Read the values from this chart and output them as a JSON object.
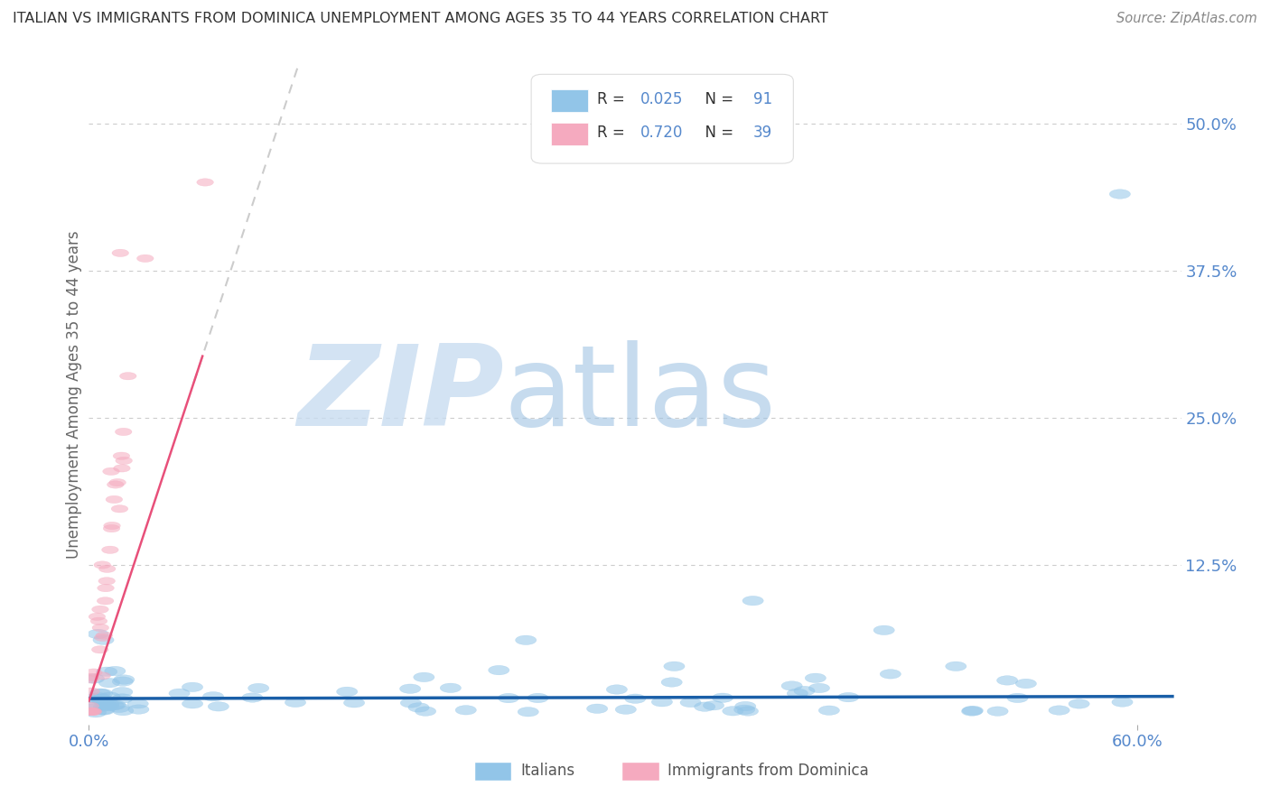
{
  "title": "ITALIAN VS IMMIGRANTS FROM DOMINICA UNEMPLOYMENT AMONG AGES 35 TO 44 YEARS CORRELATION CHART",
  "source": "Source: ZipAtlas.com",
  "ylabel": "Unemployment Among Ages 35 to 44 years",
  "xlim": [
    0.0,
    0.625
  ],
  "ylim": [
    -0.01,
    0.55
  ],
  "ytick_vals": [
    0.125,
    0.25,
    0.375,
    0.5
  ],
  "ytick_labels": [
    "12.5%",
    "25.0%",
    "37.5%",
    "50.0%"
  ],
  "xtick_vals": [
    0.0,
    0.6
  ],
  "xtick_labels": [
    "0.0%",
    "60.0%"
  ],
  "italian_color": "#92C5E8",
  "dominica_color": "#F5AABF",
  "italian_line_color": "#1A5FA8",
  "dominica_line_color": "#E8507A",
  "dominica_dash_color": "#CCCCCC",
  "italian_R": 0.025,
  "italian_N": 91,
  "dominica_R": 0.72,
  "dominica_N": 39,
  "watermark_zip": "ZIP",
  "watermark_atlas": "atlas",
  "background_color": "#FFFFFF",
  "grid_color": "#CCCCCC",
  "title_color": "#333333",
  "tick_color": "#5588CC",
  "ylabel_color": "#666666",
  "legend_text_color": "#333333",
  "source_color": "#888888"
}
